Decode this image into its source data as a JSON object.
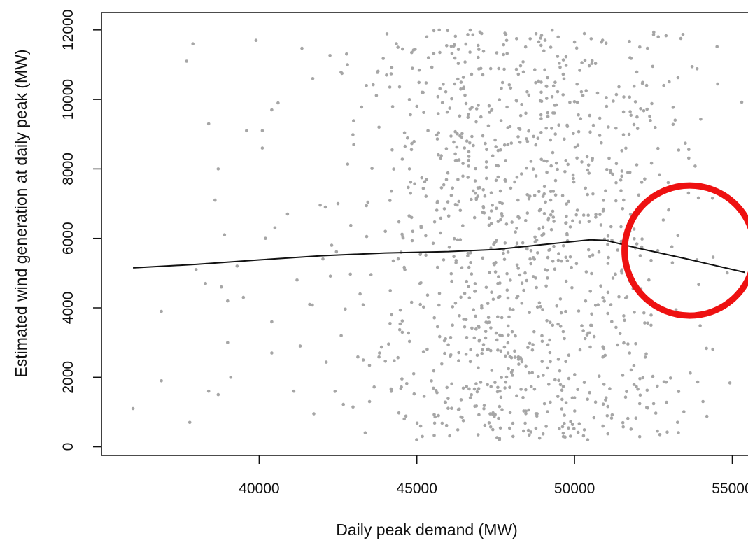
{
  "chart_data": {
    "type": "scatter",
    "title": "",
    "xlabel": "Daily peak demand (MW)",
    "ylabel": "Estimated wind generation at daily peak (MW)",
    "xlim": [
      35000,
      55500
    ],
    "ylim": [
      -250,
      12500
    ],
    "x_ticks": [
      40000,
      45000,
      50000,
      55000
    ],
    "x_tick_labels": [
      "40000",
      "45000",
      "50000",
      "55000"
    ],
    "y_ticks": [
      0,
      2000,
      4000,
      6000,
      8000,
      10000,
      12000
    ],
    "y_tick_labels": [
      "0",
      "2000",
      "4000",
      "6000",
      "8000",
      "10000",
      "12000"
    ],
    "grid": false,
    "point_color": "#a6a6a6",
    "point_count": 1200,
    "points": [
      [
        36000,
        1100
      ],
      [
        36900,
        3900
      ],
      [
        36900,
        1900
      ],
      [
        37700,
        11100
      ],
      [
        37900,
        11600
      ],
      [
        37800,
        700
      ],
      [
        38000,
        5100
      ],
      [
        38300,
        4700
      ],
      [
        38400,
        9300
      ],
      [
        38400,
        1600
      ],
      [
        38600,
        7100
      ],
      [
        38700,
        8000
      ],
      [
        38700,
        1500
      ],
      [
        38800,
        4600
      ],
      [
        38900,
        6100
      ],
      [
        39000,
        3000
      ],
      [
        39000,
        4200
      ],
      [
        39100,
        2000
      ],
      [
        39300,
        5200
      ],
      [
        39500,
        4300
      ],
      [
        39600,
        9100
      ],
      [
        39900,
        11700
      ],
      [
        40100,
        9100
      ],
      [
        40400,
        9700
      ],
      [
        40100,
        8600
      ],
      [
        40200,
        6000
      ],
      [
        40400,
        3600
      ],
      [
        40400,
        2700
      ],
      [
        40500,
        6300
      ],
      [
        40600,
        9900
      ],
      [
        40900,
        6700
      ],
      [
        41100,
        1600
      ],
      [
        41200,
        4800
      ],
      [
        41300,
        2900
      ],
      [
        41600,
        4100
      ],
      [
        41700,
        10600
      ],
      [
        42100,
        6900
      ],
      [
        42300,
        5800
      ],
      [
        42500,
        7000
      ],
      [
        42600,
        3200
      ],
      [
        42800,
        11000
      ],
      [
        43000,
        8700
      ],
      [
        43200,
        4400
      ],
      [
        43300,
        2500
      ],
      [
        43400,
        10400
      ],
      [
        43500,
        1300
      ],
      [
        43800,
        9200
      ],
      [
        44000,
        6200
      ],
      [
        44200,
        3800
      ],
      [
        44400,
        11500
      ],
      [
        44500,
        5600
      ],
      [
        44600,
        800
      ],
      [
        44800,
        7300
      ],
      [
        44900,
        2100
      ],
      [
        45000,
        9800
      ],
      [
        45100,
        4700
      ]
    ],
    "smooth_line": {
      "x": [
        36000,
        38000,
        40000,
        42000,
        44000,
        46000,
        47500,
        49000,
        50500,
        51000,
        52000,
        53500,
        55400
      ],
      "y": [
        5150,
        5250,
        5380,
        5500,
        5580,
        5620,
        5680,
        5820,
        5960,
        5940,
        5720,
        5420,
        5020
      ]
    },
    "line_color": "#111111",
    "annotation": {
      "shape": "circle",
      "color": "#ee1111",
      "center_data": [
        53650,
        5650
      ]
    }
  }
}
